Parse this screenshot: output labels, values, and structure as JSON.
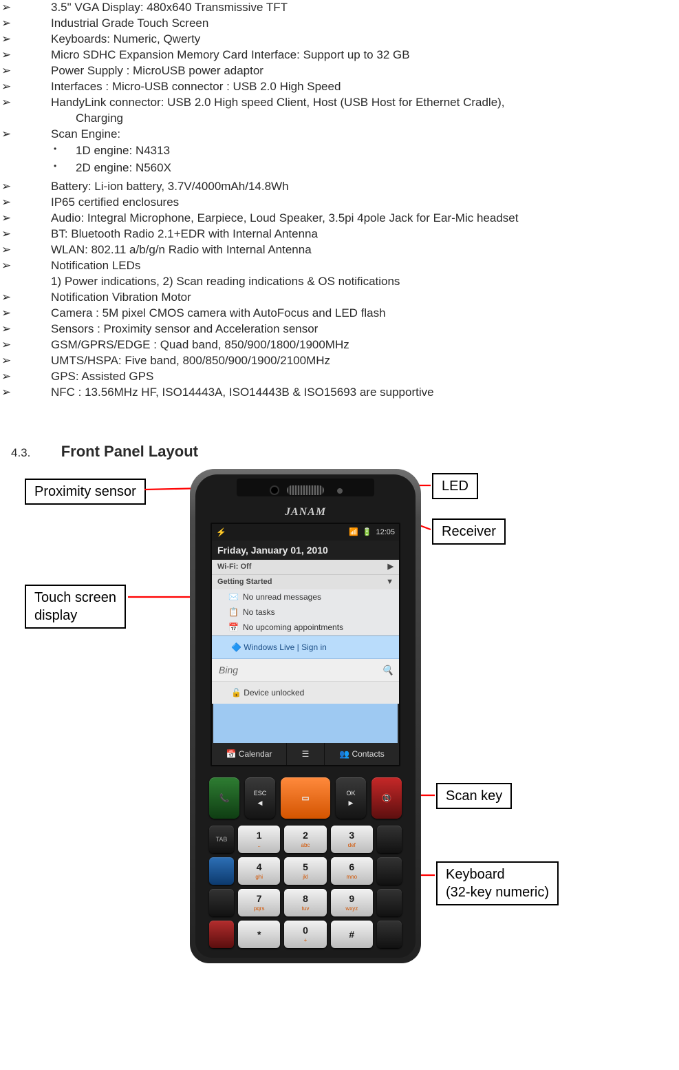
{
  "specs": {
    "items": [
      {
        "text": "3.5\" VGA Display: 480x640 Transmissive TFT"
      },
      {
        "text": "Industrial Grade Touch Screen"
      },
      {
        "text": "Keyboards: Numeric, Qwerty"
      },
      {
        "text": "Micro SDHC Expansion Memory Card Interface: Support up to 32 GB"
      },
      {
        "text": "Power Supply : MicroUSB power adaptor"
      },
      {
        "text": "Interfaces : Micro-USB connector : USB 2.0 High Speed"
      },
      {
        "text": "HandyLink connector: USB 2.0 High speed Client, Host (USB Host for Ethernet Cradle),",
        "cont": "Charging"
      },
      {
        "text": "Scan Engine:",
        "sub": [
          "1D engine: N4313",
          "2D engine: N560X"
        ]
      },
      {
        "text": "Battery: Li-ion battery, 3.7V/4000mAh/14.8Wh"
      },
      {
        "text": "IP65 certified enclosures"
      },
      {
        "text": "Audio: Integral Microphone, Earpiece, Loud Speaker, 3.5pi 4pole Jack for Ear-Mic headset"
      },
      {
        "text": "BT: Bluetooth Radio 2.1+EDR with Internal Antenna"
      },
      {
        "text": "WLAN: 802.11 a/b/g/n Radio with Internal Antenna"
      },
      {
        "text": "Notification LEDs",
        "extra": "1) Power indications, 2) Scan reading indications & OS notifications"
      },
      {
        "text": "Notification Vibration Motor"
      },
      {
        "text": "Camera : 5M pixel CMOS camera with AutoFocus and LED flash"
      },
      {
        "text": "Sensors : Proximity sensor and Acceleration sensor"
      },
      {
        "text": "GSM/GPRS/EDGE : Quad band, 850/900/1800/1900MHz"
      },
      {
        "text": "UMTS/HSPA: Five band, 800/850/900/1900/2100MHz"
      },
      {
        "text": "GPS: Assisted GPS"
      },
      {
        "text": "NFC : 13.56MHz HF, ISO14443A, ISO14443B & ISO15693 are supportive"
      }
    ]
  },
  "section": {
    "number": "4.3.",
    "title": "Front Panel Layout"
  },
  "device": {
    "brand": "JANAM",
    "statusbar": {
      "start": "⚡",
      "sig": "📶",
      "batt": "🔋",
      "time": "12:05"
    },
    "date": "Friday, January 01, 2010",
    "wifi_label": "Wi-Fi: Off",
    "getting_started": "Getting Started",
    "unread": "No unread messages",
    "tasks": "No tasks",
    "upcoming": "No upcoming appointments",
    "wlive": "Windows Live | Sign in",
    "bing": "Bing",
    "unlocked": "Device unlocked",
    "soft_left": "📅 Calendar",
    "soft_mid": "",
    "soft_right": "👥 Contacts",
    "keypad": {
      "rows": [
        [
          "TAB",
          "1 ..",
          "2 abc",
          "3 def",
          ""
        ],
        [
          "",
          "4 ghi",
          "5 jkl",
          "6 mno",
          ""
        ],
        [
          "",
          "7 pqrs",
          "8 tuv",
          "9 wxyz",
          ""
        ],
        [
          "",
          "*",
          "0 +",
          "#",
          ""
        ]
      ],
      "esc": "ESC",
      "ok": "OK",
      "sym": "*"
    }
  },
  "callouts": {
    "prox": "Proximity sensor",
    "led": "LED",
    "receiver": "Receiver",
    "touch": "Touch screen\ndisplay",
    "scan": "Scan key",
    "keyboard": "Keyboard\n(32-key numeric)"
  }
}
